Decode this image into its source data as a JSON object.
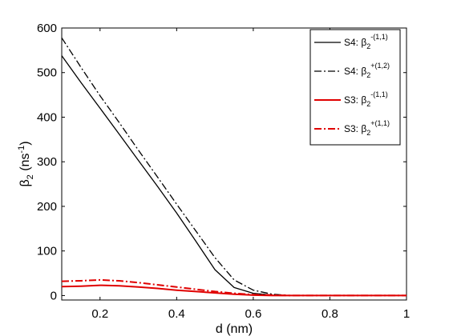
{
  "chart_data": {
    "type": "line",
    "xlabel": "d (nm)",
    "ylabel": {
      "base": "β",
      "sub": "2",
      "unit_open": " (ns",
      "unit_sup": "-1",
      "unit_close": ")"
    },
    "xlim": [
      0.1,
      1.0
    ],
    "ylim": [
      -10,
      600
    ],
    "xticks": [
      0.2,
      0.4,
      0.6,
      0.8,
      1
    ],
    "xtick_labels": [
      "0.2",
      "0.4",
      "0.6",
      "0.8",
      "1"
    ],
    "yticks": [
      0,
      100,
      200,
      300,
      400,
      500,
      600
    ],
    "ytick_labels": [
      "0",
      "100",
      "200",
      "300",
      "400",
      "500",
      "600"
    ],
    "grid": false,
    "legend_position": "top-right",
    "series": [
      {
        "prefix": "S4: β",
        "sub": "2",
        "sup": "-(1,1)",
        "color": "#000000",
        "dash": "solid",
        "x": [
          0.1,
          0.15,
          0.2,
          0.25,
          0.3,
          0.35,
          0.4,
          0.45,
          0.5,
          0.55,
          0.6,
          0.65,
          0.7,
          0.75,
          0.8,
          0.9,
          1.0
        ],
        "y": [
          538,
          478,
          420,
          362,
          303,
          245,
          185,
          122,
          58,
          18,
          5,
          1,
          0,
          0,
          0,
          0,
          0
        ]
      },
      {
        "prefix": "S4: β",
        "sub": "2",
        "sup": "+(1,2)",
        "color": "#000000",
        "dash": "dashdot",
        "x": [
          0.1,
          0.15,
          0.2,
          0.25,
          0.3,
          0.35,
          0.4,
          0.45,
          0.5,
          0.55,
          0.6,
          0.65,
          0.7,
          0.75,
          0.8,
          0.9,
          1.0
        ],
        "y": [
          578,
          512,
          448,
          388,
          326,
          266,
          205,
          145,
          85,
          35,
          12,
          3,
          0,
          0,
          0,
          0,
          0
        ]
      },
      {
        "prefix": "S3: β",
        "sub": "2",
        "sup": "-(1,1)",
        "color": "#e00000",
        "dash": "solid",
        "x": [
          0.1,
          0.15,
          0.2,
          0.25,
          0.3,
          0.35,
          0.4,
          0.45,
          0.5,
          0.55,
          0.6,
          0.65,
          0.7,
          0.75,
          0.8,
          0.9,
          1.0
        ],
        "y": [
          20,
          21,
          23,
          22,
          19,
          16,
          12,
          9,
          6,
          3,
          1,
          0,
          0,
          0,
          0,
          0,
          0
        ]
      },
      {
        "prefix": "S3: β",
        "sub": "2",
        "sup": "+(1,1)",
        "color": "#e00000",
        "dash": "dashdot",
        "x": [
          0.1,
          0.15,
          0.2,
          0.25,
          0.3,
          0.35,
          0.4,
          0.45,
          0.5,
          0.55,
          0.6,
          0.65,
          0.7,
          0.75,
          0.8,
          0.9,
          1.0
        ],
        "y": [
          32,
          33,
          35,
          33,
          29,
          24,
          19,
          14,
          9,
          5,
          2,
          1,
          0,
          0,
          0,
          0,
          0
        ]
      }
    ]
  }
}
